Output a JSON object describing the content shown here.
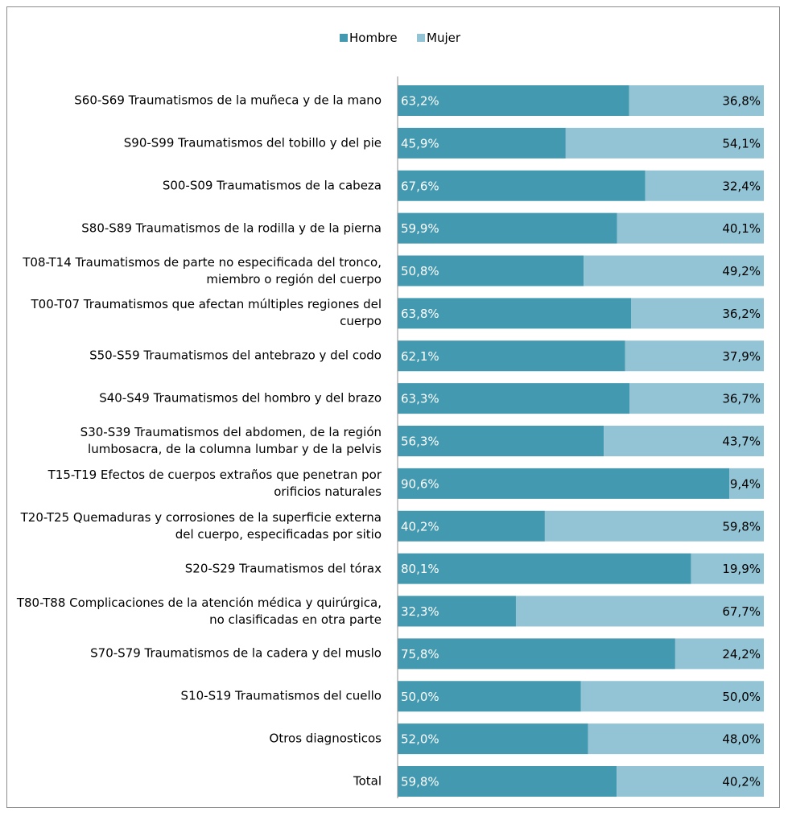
{
  "chart_data": {
    "type": "bar",
    "orientation": "horizontal",
    "stacked": true,
    "xlim": [
      0,
      100
    ],
    "legend": "top",
    "categories": [
      "S60-S69 Traumatismos de la muñeca y de la mano",
      "S90-S99 Traumatismos del tobillo y del pie",
      "S00-S09 Traumatismos de la cabeza",
      "S80-S89 Traumatismos de la rodilla y de la pierna",
      "T08-T14 Traumatismos de parte no especificada del tronco, miembro o región del cuerpo",
      "T00-T07 Traumatismos que afectan múltiples regiones del cuerpo",
      "S50-S59 Traumatismos del antebrazo y del codo",
      "S40-S49 Traumatismos del hombro y del brazo",
      "S30-S39 Traumatismos del abdomen, de la región lumbosacra, de la columna lumbar y de la pelvis",
      "T15-T19 Efectos de cuerpos extraños que penetran por orificios naturales",
      "T20-T25 Quemaduras y corrosiones de la superficie externa del cuerpo, especificadas por sitio",
      "S20-S29 Traumatismos del tórax",
      "T80-T88 Complicaciones de la atención médica y quirúrgica, no clasificadas en otra parte",
      "S70-S79 Traumatismos de la cadera y del muslo",
      "S10-S19 Traumatismos del cuello",
      "Otros diagnosticos",
      "Total"
    ],
    "series": [
      {
        "name": "Hombre",
        "color": "#4399b0",
        "values": [
          63.2,
          45.9,
          67.6,
          59.9,
          50.8,
          63.8,
          62.1,
          63.3,
          56.3,
          90.6,
          40.2,
          80.1,
          32.3,
          75.8,
          50.0,
          52.0,
          59.8
        ],
        "value_labels": [
          "63,2%",
          "45,9%",
          "67,6%",
          "59,9%",
          "50,8%",
          "63,8%",
          "62,1%",
          "63,3%",
          "56,3%",
          "90,6%",
          "40,2%",
          "80,1%",
          "32,3%",
          "75,8%",
          "50,0%",
          "52,0%",
          "59,8%"
        ]
      },
      {
        "name": "Mujer",
        "color": "#93c4d5",
        "values": [
          36.8,
          54.1,
          32.4,
          40.1,
          49.2,
          36.2,
          37.9,
          36.7,
          43.7,
          9.4,
          59.8,
          19.9,
          67.7,
          24.2,
          50.0,
          48.0,
          40.2
        ],
        "value_labels": [
          "36,8%",
          "54,1%",
          "32,4%",
          "40,1%",
          "49,2%",
          "36,2%",
          "37,9%",
          "36,7%",
          "43,7%",
          "9,4%",
          "59,8%",
          "19,9%",
          "67,7%",
          "24,2%",
          "50,0%",
          "48,0%",
          "40,2%"
        ]
      }
    ]
  }
}
